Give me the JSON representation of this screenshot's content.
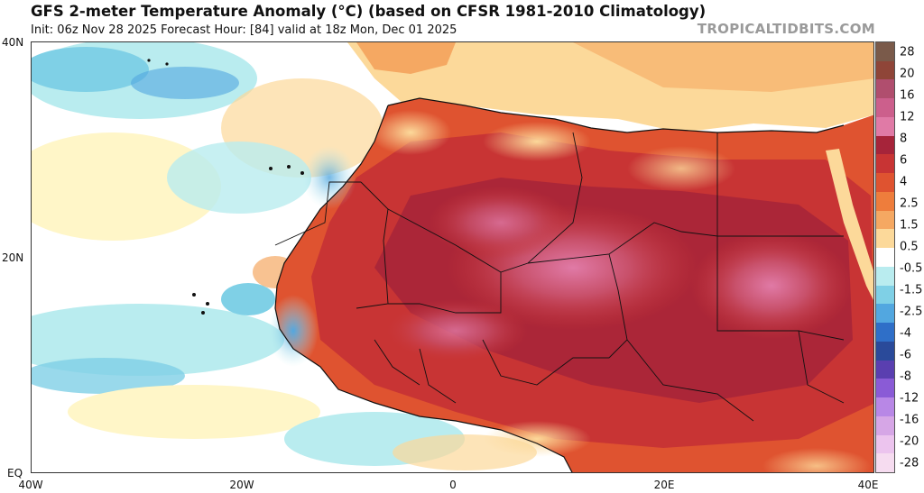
{
  "header": {
    "title": "GFS 2-meter Temperature Anomaly (°C) (based on CFSR 1981-2010 Climatology)",
    "subtitle": "Init: 06z Nov 28 2025   Forecast Hour: [84]   valid at 18z Mon, Dec 01 2025",
    "credit": "TROPICALTIDBITS.COM"
  },
  "axes": {
    "lat_labels": [
      "40N",
      "20N",
      "EQ"
    ],
    "lon_labels": [
      "40W",
      "20W",
      "0",
      "20E",
      "40E"
    ]
  },
  "colorbar": {
    "labels": [
      "28",
      "20",
      "16",
      "12",
      "8",
      "6",
      "4",
      "2.5",
      "1.5",
      "0.5",
      "-0.5",
      "-1.5",
      "-2.5",
      "-4",
      "-6",
      "-8",
      "-12",
      "-16",
      "-20",
      "-28"
    ],
    "colors": [
      "#7a5a4a",
      "#8f4538",
      "#b04e6e",
      "#cc5f8c",
      "#e07aa6",
      "#a6243a",
      "#c83434",
      "#df5330",
      "#ee7d3c",
      "#f5a862",
      "#fcd99a",
      "#ffffff",
      "#b9ecef",
      "#7fd0e6",
      "#52a7e0",
      "#2f6fc8",
      "#2a4a9a",
      "#5a3fb0",
      "#8a5bd6",
      "#b887e6",
      "#d6a6e6",
      "#ecc4ee",
      "#f6dcf0"
    ]
  },
  "map": {
    "ocean_color": "#ffffff",
    "region": "West and North Africa"
  }
}
